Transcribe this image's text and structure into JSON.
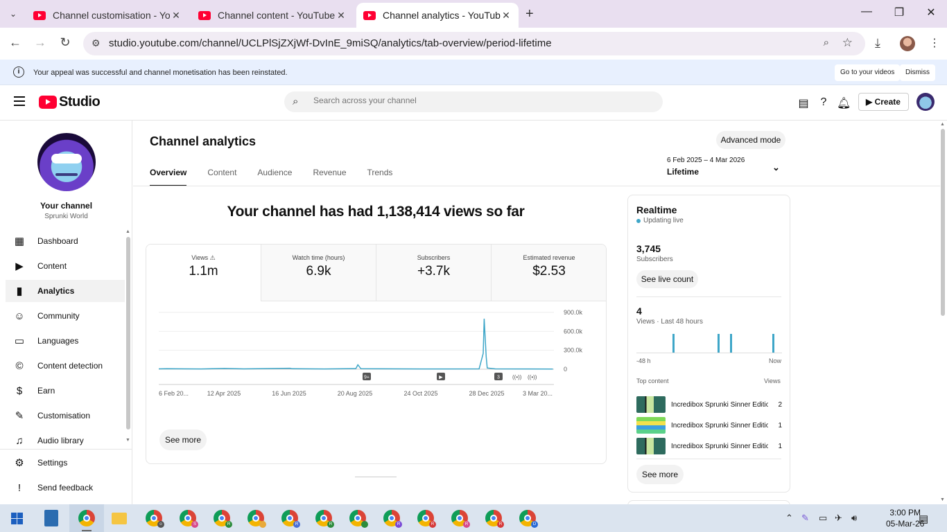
{
  "browser": {
    "tabs": [
      {
        "title": "Channel customisation - YouTube Studio",
        "close": "✕"
      },
      {
        "title": "Channel content - YouTube Studio",
        "close": "✕"
      },
      {
        "title": "Channel analytics - YouTube Studio",
        "close": "✕"
      }
    ],
    "url": "studio.youtube.com/channel/UCLPlSjZXjWf-DvInE_9miSQ/analytics/tab-overview/period-lifetime"
  },
  "notice": {
    "message": "Your appeal was successful and channel monetisation has been reinstated.",
    "go_to_videos": "Go to your videos",
    "dismiss": "Dismiss"
  },
  "studio_header": {
    "logo_text": "Studio",
    "search_placeholder": "Search across your channel",
    "create_label": "Create"
  },
  "sidebar": {
    "channel_title": "Your channel",
    "channel_name": "Sprunki World",
    "items": [
      {
        "label": "Dashboard",
        "icon": "dashboard-icon"
      },
      {
        "label": "Content",
        "icon": "content-icon"
      },
      {
        "label": "Analytics",
        "icon": "analytics-icon"
      },
      {
        "label": "Community",
        "icon": "community-icon"
      },
      {
        "label": "Languages",
        "icon": "languages-icon"
      },
      {
        "label": "Content detection",
        "icon": "copyright-icon"
      },
      {
        "label": "Earn",
        "icon": "dollar-icon"
      },
      {
        "label": "Customisation",
        "icon": "magic-wand-icon"
      },
      {
        "label": "Audio library",
        "icon": "audio-library-icon"
      }
    ],
    "bottom_items": [
      {
        "label": "Settings",
        "icon": "gear-icon"
      },
      {
        "label": "Send feedback",
        "icon": "feedback-icon"
      }
    ]
  },
  "main": {
    "title": "Channel analytics",
    "advanced_mode": "Advanced mode",
    "tabs": [
      {
        "label": "Overview"
      },
      {
        "label": "Content"
      },
      {
        "label": "Audience"
      },
      {
        "label": "Revenue"
      },
      {
        "label": "Trends"
      }
    ],
    "date_range": "6 Feb 2025 – 4 Mar 2026",
    "date_label": "Lifetime",
    "headline": "Your channel has had 1,138,414 views so far",
    "metrics": [
      {
        "label": "Views",
        "value": "1.1m"
      },
      {
        "label": "Watch time (hours)",
        "value": "6.9k"
      },
      {
        "label": "Subscribers",
        "value": "+3.7k"
      },
      {
        "label": "Estimated revenue",
        "value": "$2.53"
      }
    ],
    "see_more": "See more",
    "markers": [
      "9+",
      "▶",
      "3"
    ]
  },
  "chart_data": {
    "type": "line",
    "x_tick_labels": [
      "6 Feb 20...",
      "12 Apr 2025",
      "16 Jun 2025",
      "20 Aug 2025",
      "24 Oct 2025",
      "28 Dec 2025",
      "3 Mar 20..."
    ],
    "y_tick_labels": [
      "900.0k",
      "600.0k",
      "300.0k",
      "0"
    ],
    "ylim": [
      0,
      900000
    ],
    "x": [
      "2025-02-06",
      "2025-02-14",
      "2025-03-20",
      "2025-04-12",
      "2025-05-01",
      "2025-06-16",
      "2025-06-18",
      "2025-07-20",
      "2025-08-20",
      "2025-08-22",
      "2025-08-25",
      "2025-10-24",
      "2025-12-20",
      "2025-12-24",
      "2025-12-25",
      "2025-12-27",
      "2025-12-28",
      "2026-01-05",
      "2026-03-03"
    ],
    "values": [
      5000,
      8000,
      4000,
      12000,
      5000,
      15000,
      8000,
      4000,
      10000,
      70000,
      8000,
      4000,
      5000,
      250000,
      800000,
      200000,
      20000,
      6000,
      3000
    ],
    "grid": true,
    "line_color": "#3ea6c8"
  },
  "realtime": {
    "title": "Realtime",
    "status": "Updating live",
    "subscribers_value": "3,745",
    "subscribers_label": "Subscribers",
    "see_live_count": "See live count",
    "views_value": "4",
    "views_label": "Views · Last 48 hours",
    "axis_start": "-48 h",
    "axis_end": "Now",
    "top_content_label": "Top content",
    "views_col_label": "Views",
    "top_content": [
      {
        "title": "Incredibox Sprunki Sinner Edition",
        "views": "2"
      },
      {
        "title": "Incredibox Sprunki Sinner Edition",
        "views": "1"
      },
      {
        "title": "Incredibox Sprunki Sinner Edition",
        "views": "1"
      }
    ],
    "see_more": "See more"
  },
  "taskbar": {
    "time": "3:00 PM",
    "date": "05-Mar-26"
  }
}
